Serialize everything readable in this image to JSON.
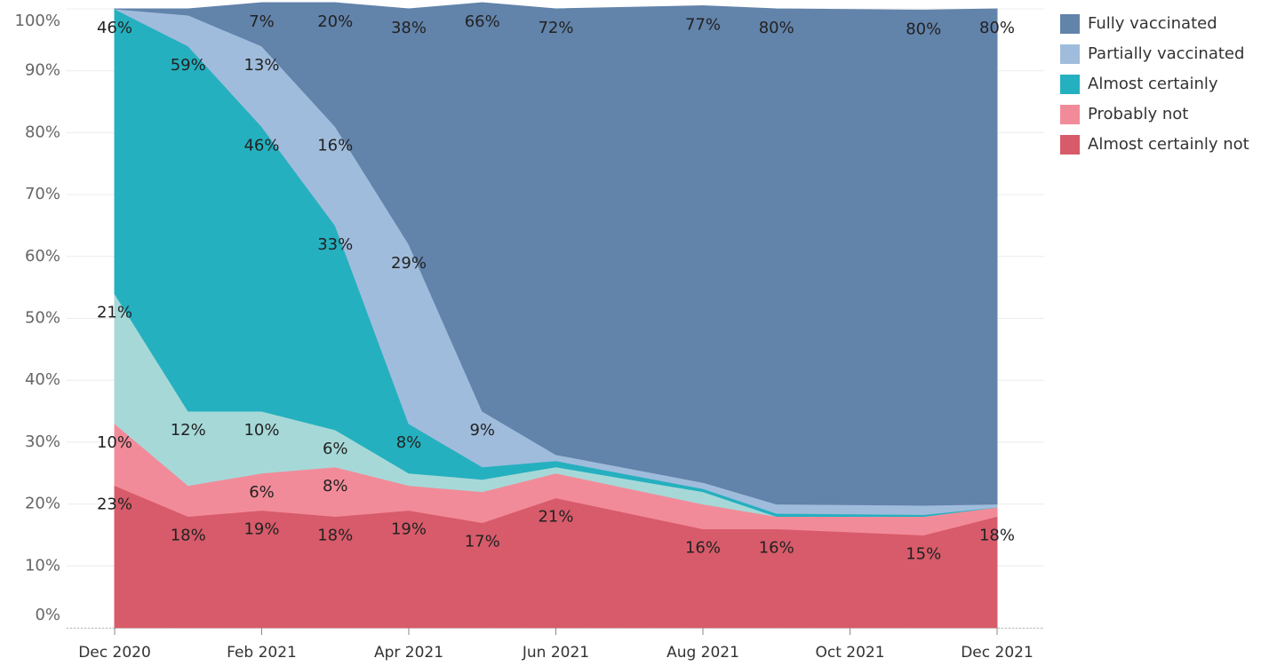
{
  "chart_data": {
    "type": "stacked_area",
    "x": [
      "2020-12",
      "2021-01",
      "2021-02",
      "2021-03",
      "2021-04",
      "2021-05",
      "2021-06",
      "2021-08",
      "2021-09",
      "2021-11",
      "2021-12"
    ],
    "series": [
      {
        "name": "Almost certainly not",
        "color": "#d75b6a",
        "values": [
          23,
          18,
          19,
          18,
          19,
          17,
          21,
          16,
          16,
          15,
          18
        ],
        "value_labels": [
          "23%",
          "18%",
          "19%",
          "18%",
          "19%",
          "17%",
          "21%",
          "16%",
          "16%",
          "15%",
          "18%"
        ]
      },
      {
        "name": "Probably not",
        "color": "#f28b99",
        "values": [
          10,
          5,
          6,
          8,
          4,
          5,
          4,
          4,
          2,
          3,
          1.5
        ],
        "value_labels": [
          "10%",
          null,
          "6%",
          "8%",
          null,
          null,
          null,
          null,
          null,
          null,
          null
        ]
      },
      {
        "color": "#a7d8d8",
        "values": [
          21,
          12,
          10,
          6,
          2,
          2,
          1,
          2,
          0,
          0,
          0
        ],
        "value_labels": [
          "21%",
          "12%",
          "10%",
          "6%",
          null,
          null,
          null,
          null,
          null,
          null,
          null
        ]
      },
      {
        "name": "Almost certainly",
        "color": "#25b0bf",
        "values": [
          46,
          59,
          46,
          33,
          8,
          2,
          1,
          0.5,
          0.5,
          0.3,
          0
        ],
        "value_labels": [
          "46%",
          "59%",
          "46%",
          "33%",
          "8%",
          null,
          null,
          null,
          null,
          null,
          null
        ]
      },
      {
        "name": "Partially vaccinated",
        "color": "#a0bcdc",
        "values": [
          0,
          5,
          13,
          16,
          29,
          9,
          1,
          1,
          1.5,
          1.5,
          0.5
        ],
        "value_labels": [
          null,
          null,
          "13%",
          "16%",
          "29%",
          "9%",
          null,
          null,
          null,
          null,
          null
        ]
      },
      {
        "name": "Fully vaccinated",
        "color": "#6283aa",
        "values": [
          0,
          1,
          7,
          20,
          38,
          66,
          72,
          77,
          80,
          80,
          80
        ],
        "value_labels": [
          null,
          null,
          "7%",
          "20%",
          "38%",
          "66%",
          "72%",
          "77%",
          "80%",
          "80%",
          "80%"
        ]
      }
    ],
    "ylim": [
      0,
      100
    ],
    "yticks": [
      {
        "value": 0,
        "label": "0%"
      },
      {
        "value": 10,
        "label": "10%"
      },
      {
        "value": 20,
        "label": "20%"
      },
      {
        "value": 30,
        "label": "30%"
      },
      {
        "value": 40,
        "label": "40%"
      },
      {
        "value": 50,
        "label": "50%"
      },
      {
        "value": 60,
        "label": "60%"
      },
      {
        "value": 70,
        "label": "70%"
      },
      {
        "value": 80,
        "label": "80%"
      },
      {
        "value": 90,
        "label": "90%"
      },
      {
        "value": 100,
        "label": "100%"
      }
    ],
    "xlim": [
      "2020-12",
      "2021-12"
    ],
    "xticks": [
      {
        "value": "2020-12",
        "label": "Dec 2020"
      },
      {
        "value": "2021-02",
        "label": "Feb 2021"
      },
      {
        "value": "2021-04",
        "label": "Apr 2021"
      },
      {
        "value": "2021-06",
        "label": "Jun 2021"
      },
      {
        "value": "2021-08",
        "label": "Aug 2021"
      },
      {
        "value": "2021-10",
        "label": "Oct 2021"
      },
      {
        "value": "2021-12",
        "label": "Dec 2021"
      }
    ],
    "grid": true,
    "legend": "right"
  }
}
